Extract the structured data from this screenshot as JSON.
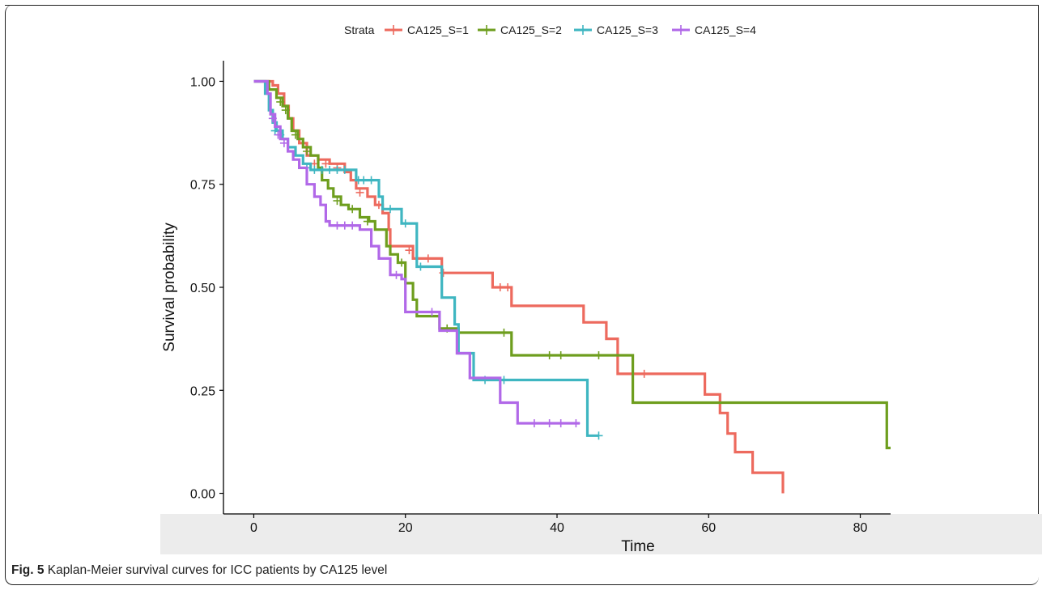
{
  "figure": {
    "caption_label": "Fig. 5",
    "caption_text": "Kaplan-Meier survival curves for ICC patients by CA125 level"
  },
  "chart_data": {
    "type": "line",
    "subtype": "kaplan-meier",
    "xlabel": "Time",
    "ylabel": "Survival probability",
    "xlim": [
      -4,
      84
    ],
    "ylim": [
      -0.05,
      1.05
    ],
    "xticks": [
      0,
      20,
      40,
      60,
      80
    ],
    "yticks": [
      0.0,
      0.25,
      0.5,
      0.75,
      1.0
    ],
    "ytick_labels": [
      "0.00",
      "0.25",
      "0.50",
      "0.75",
      "1.00"
    ],
    "grid": false,
    "legend": {
      "title": "Strata",
      "position": "top"
    },
    "series": [
      {
        "name": "CA125_S=1",
        "color": "#ED6A5E",
        "steps": [
          [
            0,
            1.0
          ],
          [
            2.5,
            0.99
          ],
          [
            3.2,
            0.97
          ],
          [
            4.0,
            0.94
          ],
          [
            4.6,
            0.91
          ],
          [
            5.2,
            0.88
          ],
          [
            6.0,
            0.85
          ],
          [
            7.0,
            0.82
          ],
          [
            8.5,
            0.81
          ],
          [
            10.0,
            0.8
          ],
          [
            12.0,
            0.78
          ],
          [
            12.8,
            0.76
          ],
          [
            13.5,
            0.74
          ],
          [
            15.0,
            0.72
          ],
          [
            16.0,
            0.7
          ],
          [
            17.0,
            0.68
          ],
          [
            17.8,
            0.64
          ],
          [
            18.0,
            0.6
          ],
          [
            20.0,
            0.6
          ],
          [
            21.0,
            0.57
          ],
          [
            24.0,
            0.57
          ],
          [
            24.8,
            0.535
          ],
          [
            31.5,
            0.535
          ],
          [
            31.5,
            0.5
          ],
          [
            34.0,
            0.5
          ],
          [
            34.0,
            0.455
          ],
          [
            43.5,
            0.455
          ],
          [
            43.5,
            0.415
          ],
          [
            46.5,
            0.415
          ],
          [
            46.5,
            0.375
          ],
          [
            48.0,
            0.375
          ],
          [
            48.0,
            0.29
          ],
          [
            59.5,
            0.29
          ],
          [
            59.5,
            0.24
          ],
          [
            61.5,
            0.24
          ],
          [
            61.5,
            0.195
          ],
          [
            62.5,
            0.195
          ],
          [
            62.5,
            0.145
          ],
          [
            63.5,
            0.145
          ],
          [
            63.5,
            0.1
          ],
          [
            65.8,
            0.1
          ],
          [
            65.8,
            0.05
          ],
          [
            69.8,
            0.05
          ],
          [
            69.8,
            0.0
          ]
        ],
        "censors": [
          [
            8.0,
            0.8
          ],
          [
            9.5,
            0.8
          ],
          [
            11.0,
            0.79
          ],
          [
            14.0,
            0.73
          ],
          [
            16.5,
            0.7
          ],
          [
            20.5,
            0.59
          ],
          [
            23.0,
            0.57
          ],
          [
            25.0,
            0.535
          ],
          [
            32.5,
            0.5
          ],
          [
            33.5,
            0.5
          ],
          [
            51.5,
            0.29
          ]
        ]
      },
      {
        "name": "CA125_S=2",
        "color": "#6E9E1E",
        "steps": [
          [
            0,
            1.0
          ],
          [
            2.0,
            0.98
          ],
          [
            3.0,
            0.96
          ],
          [
            3.8,
            0.94
          ],
          [
            4.5,
            0.91
          ],
          [
            5.0,
            0.88
          ],
          [
            5.8,
            0.86
          ],
          [
            6.5,
            0.84
          ],
          [
            7.5,
            0.82
          ],
          [
            8.5,
            0.79
          ],
          [
            9.0,
            0.76
          ],
          [
            9.8,
            0.74
          ],
          [
            10.5,
            0.72
          ],
          [
            11.5,
            0.7
          ],
          [
            12.5,
            0.69
          ],
          [
            14.0,
            0.67
          ],
          [
            15.2,
            0.66
          ],
          [
            16.0,
            0.64
          ],
          [
            17.5,
            0.6
          ],
          [
            18.0,
            0.58
          ],
          [
            19.0,
            0.56
          ],
          [
            20.0,
            0.51
          ],
          [
            21.0,
            0.47
          ],
          [
            21.5,
            0.43
          ],
          [
            24.5,
            0.4
          ],
          [
            27.0,
            0.39
          ],
          [
            34.0,
            0.39
          ],
          [
            34.0,
            0.335
          ],
          [
            50.0,
            0.335
          ],
          [
            50.0,
            0.22
          ],
          [
            83.5,
            0.22
          ],
          [
            83.5,
            0.11
          ],
          [
            84,
            0.11
          ]
        ],
        "censors": [
          [
            3.5,
            0.95
          ],
          [
            4.2,
            0.93
          ],
          [
            5.5,
            0.87
          ],
          [
            7.0,
            0.83
          ],
          [
            11.0,
            0.71
          ],
          [
            13.0,
            0.69
          ],
          [
            15.0,
            0.66
          ],
          [
            19.5,
            0.56
          ],
          [
            25.5,
            0.4
          ],
          [
            33.0,
            0.39
          ],
          [
            39.0,
            0.335
          ],
          [
            40.5,
            0.335
          ],
          [
            45.5,
            0.335
          ]
        ]
      },
      {
        "name": "CA125_S=3",
        "color": "#3FB6C1",
        "steps": [
          [
            0,
            1.0
          ],
          [
            1.5,
            0.97
          ],
          [
            2.0,
            0.93
          ],
          [
            2.5,
            0.9
          ],
          [
            3.0,
            0.88
          ],
          [
            3.8,
            0.86
          ],
          [
            4.5,
            0.84
          ],
          [
            5.5,
            0.82
          ],
          [
            6.5,
            0.8
          ],
          [
            7.5,
            0.785
          ],
          [
            13.5,
            0.785
          ],
          [
            13.5,
            0.76
          ],
          [
            16.5,
            0.76
          ],
          [
            16.5,
            0.72
          ],
          [
            17.0,
            0.69
          ],
          [
            19.5,
            0.69
          ],
          [
            19.5,
            0.655
          ],
          [
            21.5,
            0.655
          ],
          [
            21.5,
            0.59
          ],
          [
            21.5,
            0.55
          ],
          [
            24.0,
            0.55
          ],
          [
            24.8,
            0.475
          ],
          [
            26.0,
            0.475
          ],
          [
            26.5,
            0.41
          ],
          [
            27.0,
            0.34
          ],
          [
            28.5,
            0.34
          ],
          [
            29.0,
            0.275
          ],
          [
            44.0,
            0.275
          ],
          [
            44.0,
            0.14
          ],
          [
            45.5,
            0.14
          ]
        ],
        "censors": [
          [
            2.8,
            0.88
          ],
          [
            3.5,
            0.87
          ],
          [
            7.0,
            0.79
          ],
          [
            8.0,
            0.785
          ],
          [
            9.0,
            0.785
          ],
          [
            10.0,
            0.785
          ],
          [
            11.0,
            0.785
          ],
          [
            12.0,
            0.785
          ],
          [
            13.8,
            0.76
          ],
          [
            14.5,
            0.76
          ],
          [
            15.5,
            0.76
          ],
          [
            18.0,
            0.69
          ],
          [
            20.0,
            0.655
          ],
          [
            22.0,
            0.55
          ],
          [
            30.5,
            0.275
          ],
          [
            33.0,
            0.275
          ],
          [
            45.5,
            0.14
          ]
        ]
      },
      {
        "name": "CA125_S=4",
        "color": "#B168E8",
        "steps": [
          [
            0,
            1.0
          ],
          [
            1.8,
            0.97
          ],
          [
            2.2,
            0.92
          ],
          [
            2.8,
            0.89
          ],
          [
            3.5,
            0.86
          ],
          [
            4.5,
            0.83
          ],
          [
            5.2,
            0.81
          ],
          [
            6.0,
            0.79
          ],
          [
            7.0,
            0.75
          ],
          [
            8.0,
            0.72
          ],
          [
            8.8,
            0.7
          ],
          [
            9.5,
            0.66
          ],
          [
            10.0,
            0.65
          ],
          [
            13.5,
            0.65
          ],
          [
            14.0,
            0.64
          ],
          [
            15.5,
            0.6
          ],
          [
            16.5,
            0.57
          ],
          [
            17.5,
            0.57
          ],
          [
            18.0,
            0.53
          ],
          [
            19.5,
            0.52
          ],
          [
            20.0,
            0.44
          ],
          [
            24.5,
            0.44
          ],
          [
            24.5,
            0.395
          ],
          [
            26.5,
            0.395
          ],
          [
            26.8,
            0.34
          ],
          [
            28.5,
            0.34
          ],
          [
            28.5,
            0.28
          ],
          [
            32.5,
            0.28
          ],
          [
            32.5,
            0.22
          ],
          [
            34.8,
            0.22
          ],
          [
            34.8,
            0.17
          ],
          [
            43.0,
            0.17
          ]
        ],
        "censors": [
          [
            2.5,
            0.91
          ],
          [
            3.2,
            0.87
          ],
          [
            4.0,
            0.85
          ],
          [
            11.0,
            0.65
          ],
          [
            12.0,
            0.65
          ],
          [
            13.0,
            0.65
          ],
          [
            18.8,
            0.53
          ],
          [
            23.5,
            0.44
          ],
          [
            37.0,
            0.17
          ],
          [
            39.0,
            0.17
          ],
          [
            40.5,
            0.17
          ],
          [
            42.5,
            0.17
          ]
        ]
      }
    ]
  }
}
